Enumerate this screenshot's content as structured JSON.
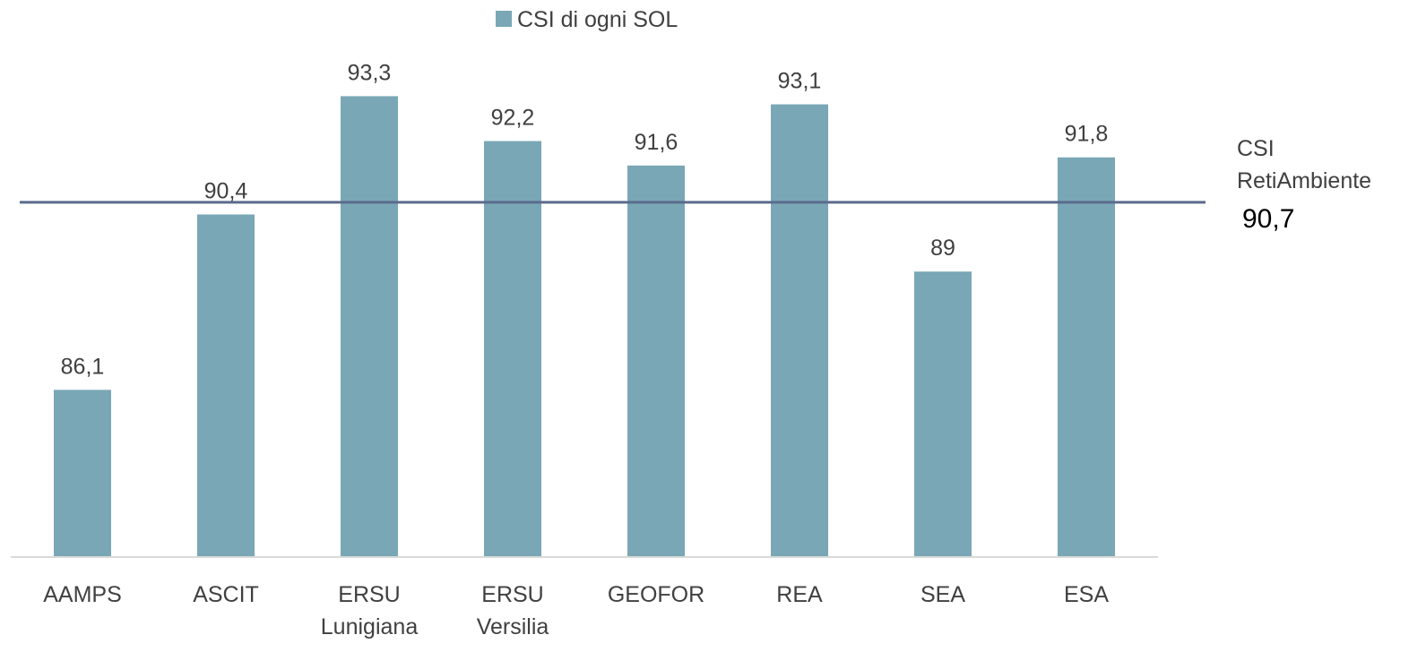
{
  "chart_data": {
    "type": "bar",
    "categories": [
      "AAMPS",
      "ASCIT",
      "ERSU Lunigiana",
      "ERSU Versilia",
      "GEOFOR",
      "REA",
      "SEA",
      "ESA"
    ],
    "series": [
      {
        "name": "CSI di ogni SOL",
        "color": "#79a7b6",
        "values": [
          86.1,
          90.4,
          93.3,
          92.2,
          91.6,
          93.1,
          89,
          91.8
        ],
        "value_labels": [
          "86,1",
          "90,4",
          "93,3",
          "92,2",
          "91,6",
          "93,1",
          "89",
          "91,8"
        ]
      }
    ],
    "reference": {
      "label": "CSI RetiAmbiente",
      "value": 90.7,
      "value_label": "90,7",
      "color": "#5b6b8c"
    },
    "ylim": [
      82,
      95
    ],
    "legend": "top"
  }
}
